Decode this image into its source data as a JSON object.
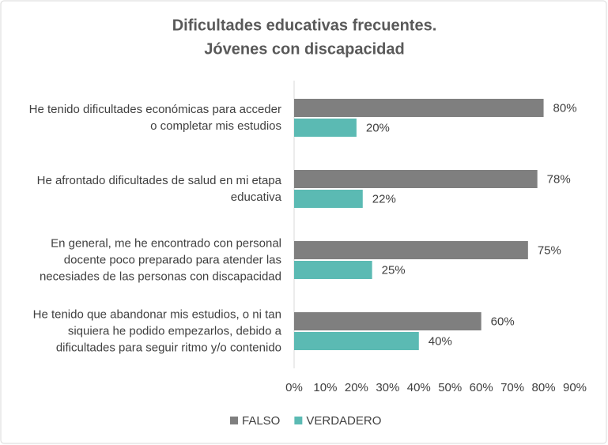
{
  "chart_data": {
    "type": "hbar",
    "title": [
      "Dificultades educativas frecuentes.",
      "Jóvenes con discapacidad"
    ],
    "categories": [
      "He tenido dificultades económicas para acceder o completar mis estudios",
      "He afrontado dificultades de salud en mi etapa educativa",
      "En general, me he encontrado con personal docente poco preparado para atender las necesiades de las personas con discapacidad",
      "He tenido que abandonar mis estudios, o ni tan siquiera he podido empezarlos, debido a dificultades para seguir ritmo y/o contenido"
    ],
    "series": [
      {
        "name": "FALSO",
        "color": "#7f7f7f",
        "values": [
          80,
          78,
          75,
          60
        ],
        "value_labels": [
          "80%",
          "78%",
          "75%",
          "60%"
        ]
      },
      {
        "name": "VERDADERO",
        "color": "#5bbab3",
        "values": [
          20,
          22,
          25,
          40
        ],
        "value_labels": [
          "20%",
          "22%",
          "25%",
          "40%"
        ]
      }
    ],
    "xlim": [
      0,
      90
    ],
    "xticks": [
      {
        "value": 0,
        "label": "0%"
      },
      {
        "value": 10,
        "label": "10%"
      },
      {
        "value": 20,
        "label": "20%"
      },
      {
        "value": 30,
        "label": "30%"
      },
      {
        "value": 40,
        "label": "40%"
      },
      {
        "value": 50,
        "label": "50%"
      },
      {
        "value": 60,
        "label": "60%"
      },
      {
        "value": 70,
        "label": "70%"
      },
      {
        "value": 80,
        "label": "80%"
      },
      {
        "value": 90,
        "label": "90%"
      }
    ],
    "legend": "bottom"
  }
}
